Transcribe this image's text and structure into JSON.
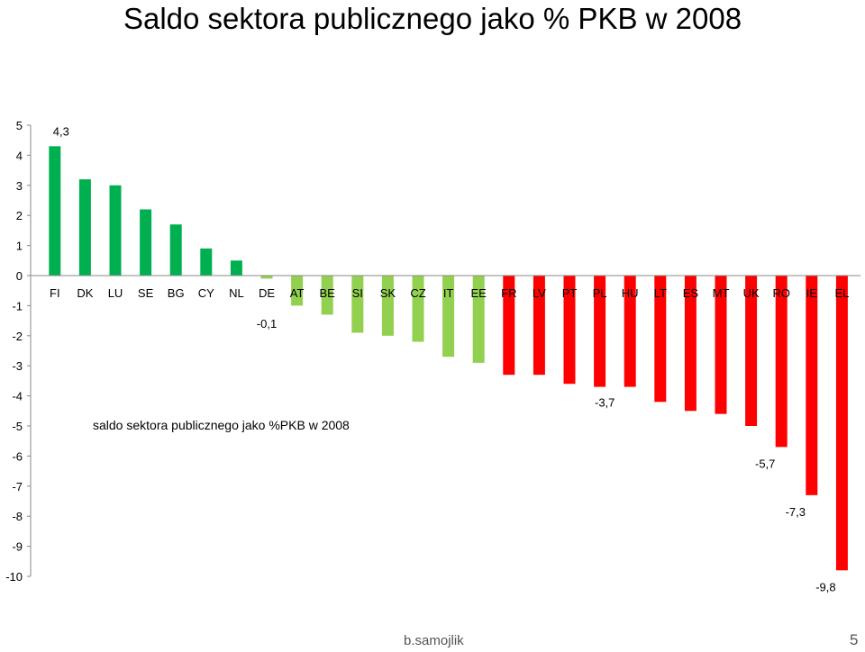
{
  "page": {
    "title": "Saldo sektora publicznego jako % PKB w 2008",
    "author": "b.samojlik",
    "page_number": "5"
  },
  "chart_data": {
    "type": "bar",
    "title": "",
    "legend_label": "saldo sektora publicznego jako %PKB w 2008",
    "categories": [
      "FI",
      "DK",
      "LU",
      "SE",
      "BG",
      "CY",
      "NL",
      "DE",
      "AT",
      "BE",
      "SI",
      "SK",
      "CZ",
      "IT",
      "EE",
      "FR",
      "LV",
      "PT",
      "PL",
      "HU",
      "LT",
      "ES",
      "MT",
      "UK",
      "RO",
      "IE",
      "EL"
    ],
    "values": [
      4.3,
      3.2,
      3.0,
      2.2,
      1.7,
      0.9,
      0.5,
      -0.1,
      -1.0,
      -1.3,
      -1.9,
      -2.0,
      -2.2,
      -2.7,
      -2.9,
      -3.3,
      -3.3,
      -3.6,
      -3.7,
      -3.7,
      -4.2,
      -4.5,
      -4.6,
      -5.0,
      -5.7,
      -7.3,
      -9.8
    ],
    "colors": [
      "#00b050",
      "#00b050",
      "#00b050",
      "#00b050",
      "#00b050",
      "#00b050",
      "#00b050",
      "#92d050",
      "#92d050",
      "#92d050",
      "#92d050",
      "#92d050",
      "#92d050",
      "#92d050",
      "#92d050",
      "#ff0000",
      "#ff0000",
      "#ff0000",
      "#ff0000",
      "#ff0000",
      "#ff0000",
      "#ff0000",
      "#ff0000",
      "#ff0000",
      "#ff0000",
      "#ff0000",
      "#ff0000"
    ],
    "data_labels": [
      {
        "index": 0,
        "text": "4,3"
      },
      {
        "index": 7,
        "text": "-0,1"
      },
      {
        "index": 19,
        "text": "-3,7"
      },
      {
        "index": 24,
        "text": "-5,7"
      },
      {
        "index": 25,
        "text": "-7,3"
      },
      {
        "index": 26,
        "text": "-9,8"
      }
    ],
    "y_ticks": [
      "5",
      "4",
      "3",
      "2",
      "1",
      "0",
      "-1",
      "-2",
      "-3",
      "-4",
      "-5",
      "-6",
      "-7",
      "-8",
      "-9",
      "-10"
    ],
    "ylim": [
      -10,
      5
    ],
    "grid": false
  }
}
